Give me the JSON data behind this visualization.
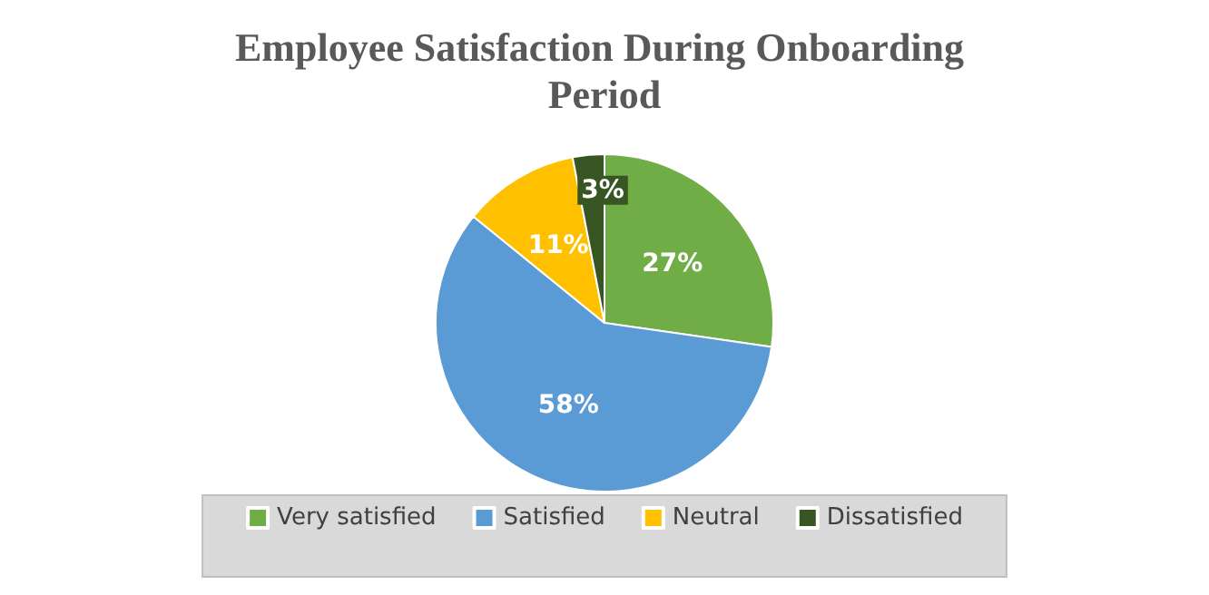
{
  "chart_data": {
    "type": "pie",
    "title": "Employee Satisfaction During Onboarding Period",
    "categories": [
      "Very satisfied",
      "Satisfied",
      "Neutral",
      "Dissatisfied"
    ],
    "values": [
      27,
      58,
      11,
      3
    ],
    "colors": [
      "#70ad47",
      "#5b9bd5",
      "#ffc000",
      "#375623"
    ],
    "value_labels": [
      "27%",
      "58%",
      "11%",
      "3%"
    ],
    "legend": "bottom"
  }
}
